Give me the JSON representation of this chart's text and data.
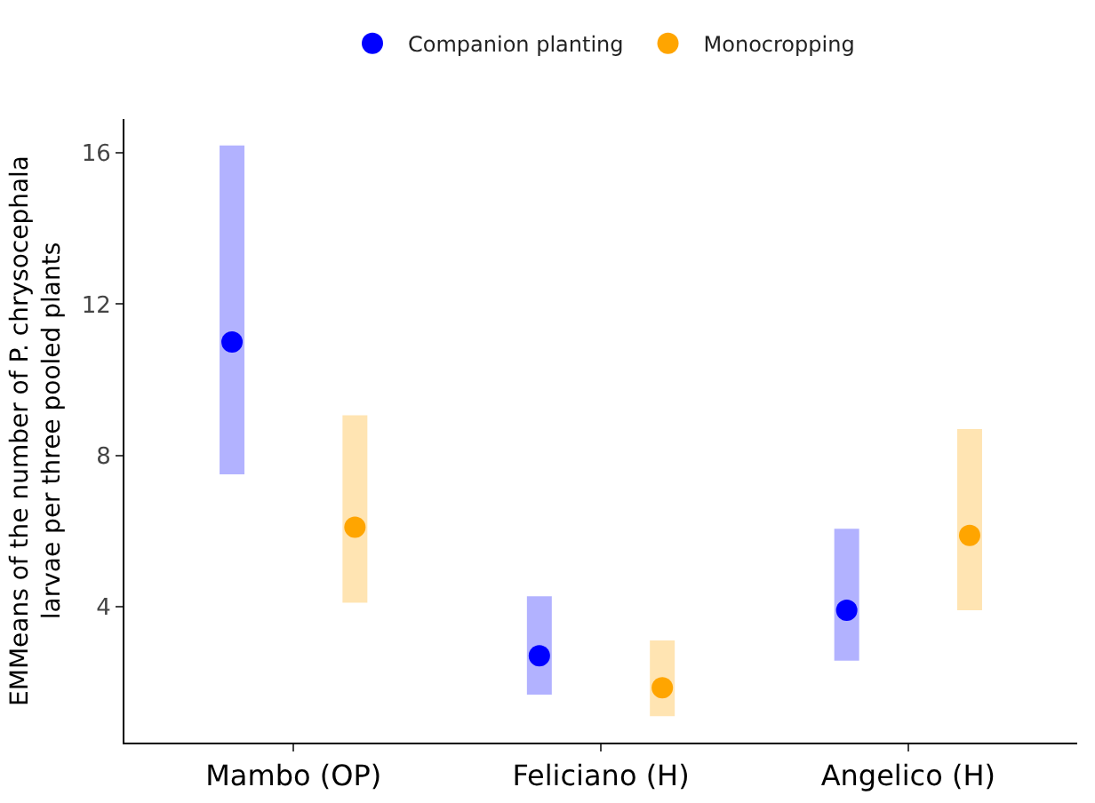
{
  "chart_data": {
    "type": "scatter",
    "ylabel": "EMMeans of the number of P. chrysocephala\nlarvae per three pooled plants",
    "categories": [
      "Mambo (OP)",
      "Feliciano (H)",
      "Angelico (H)"
    ],
    "series": [
      {
        "name": "Companion planting",
        "color": "#0000ff",
        "values": [
          11.0,
          2.7,
          3.9
        ],
        "errors": [
          [
            7.5,
            16.2
          ],
          [
            1.67,
            4.27
          ],
          [
            2.57,
            6.06
          ]
        ]
      },
      {
        "name": "Monocropping",
        "color": "#ffa500",
        "values": [
          6.1,
          1.85,
          5.88
        ],
        "errors": [
          [
            4.1,
            9.06
          ],
          [
            1.1,
            3.1
          ],
          [
            3.9,
            8.7
          ]
        ]
      }
    ],
    "ylim": [
      0.4,
      16.9
    ],
    "yticks": [
      4,
      8,
      12,
      16
    ],
    "grid": false,
    "legend": "top",
    "marker": "circle"
  }
}
